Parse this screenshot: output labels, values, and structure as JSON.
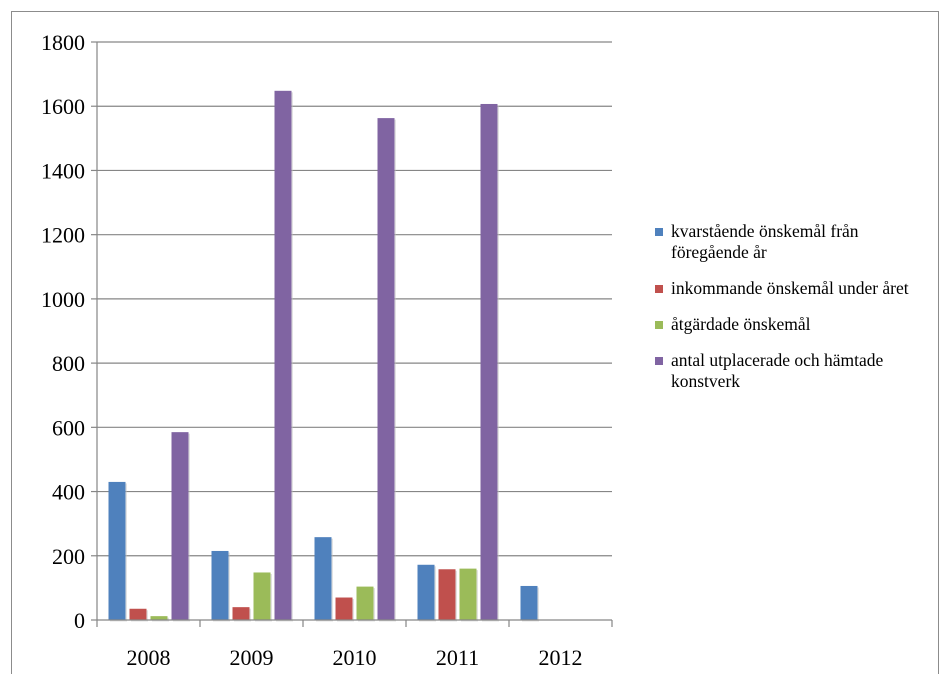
{
  "chart_data": {
    "type": "bar",
    "categories": [
      "2008",
      "2009",
      "2010",
      "2011",
      "2012"
    ],
    "ylim": [
      0,
      1800
    ],
    "yticks": [
      0,
      200,
      400,
      600,
      800,
      1000,
      1200,
      1400,
      1600,
      1800
    ],
    "ytick_labels": [
      "0",
      "200",
      "400",
      "600",
      "800",
      "1000",
      "1200",
      "1400",
      "1600",
      "1800"
    ],
    "grid": true,
    "legend_position": "right",
    "series": [
      {
        "name": "kvarstående önskemål från föregående år",
        "color": "#4f81bd",
        "values": [
          430,
          215,
          258,
          172,
          106
        ]
      },
      {
        "name": "inkommande önskemål under året",
        "color": "#c0504d",
        "values": [
          35,
          40,
          70,
          158,
          0
        ]
      },
      {
        "name": "åtgärdade önskemål",
        "color": "#9bbb59",
        "values": [
          12,
          148,
          104,
          160,
          0
        ]
      },
      {
        "name": "antal utplacerade och hämtade konstverk",
        "color": "#8064a2",
        "values": [
          585,
          1648,
          1563,
          1607,
          0
        ]
      }
    ]
  }
}
